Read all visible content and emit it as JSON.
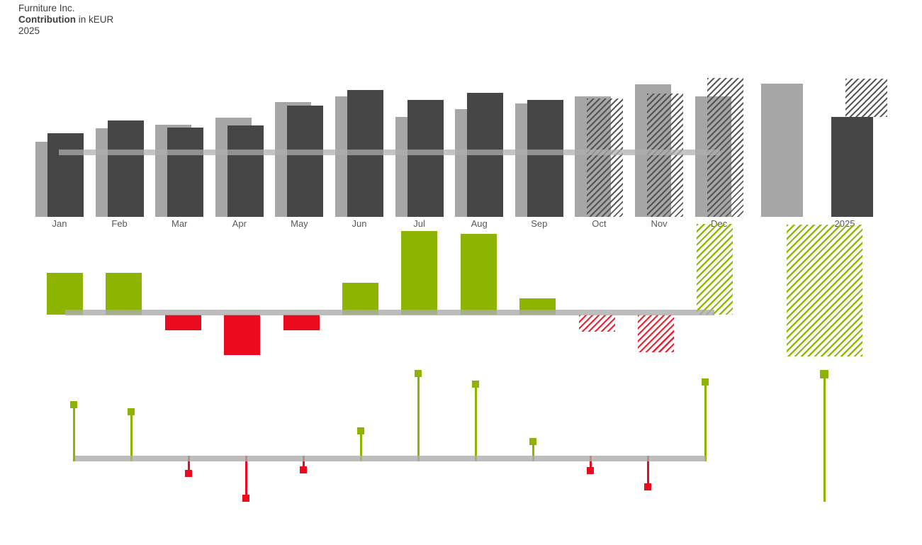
{
  "header": {
    "company": "Furniture Inc.",
    "measure_bold": "Contribution",
    "measure_rest": " in kEUR",
    "year": "2025"
  },
  "colors": {
    "actual": "#464646",
    "plan": "#a6a6a6",
    "positive": "#8cb400",
    "negative": "#ec0a1e",
    "axis": "#acacac"
  },
  "chart_data": {
    "type": "bar",
    "title": "Furniture Inc. — Contribution in kEUR — 2025",
    "legend_position": "none",
    "grid": false,
    "units": "kEUR (estimated; chart shows no numeric value labels)",
    "categories": [
      "Jan",
      "Feb",
      "Mar",
      "Apr",
      "May",
      "Jun",
      "Jul",
      "Aug",
      "Sep",
      "Oct",
      "Nov",
      "Dec"
    ],
    "total_label": "2025",
    "forecast_mask": [
      false,
      false,
      false,
      false,
      false,
      false,
      false,
      false,
      false,
      true,
      true,
      true
    ],
    "actual_vs_plan": {
      "series": [
        {
          "name": "plan",
          "values": [
            106,
            125,
            130,
            140,
            162,
            170,
            141,
            152,
            160,
            170,
            187,
            170
          ],
          "total": 188
        },
        {
          "name": "actual_or_forecast",
          "values": [
            118,
            136,
            126,
            129,
            157,
            179,
            165,
            175,
            165,
            167,
            174,
            196
          ],
          "total_actual": 141,
          "total_forecast": 54
        }
      ],
      "prior_year_line_value": 95
    },
    "variance_absolute": {
      "values": [
        59,
        59,
        -22,
        -57,
        -22,
        45,
        118,
        114,
        23,
        -24,
        -53,
        128
      ],
      "total": {
        "span": 186,
        "above_axis": 127,
        "below_axis": 59
      }
    },
    "variance_relative": {
      "values": [
        76,
        66,
        -21,
        -56,
        -16,
        39,
        120,
        105,
        24,
        -17,
        -40,
        108
      ],
      "total": {
        "head_above_axis": 119,
        "stem_below_axis": 61
      }
    }
  }
}
